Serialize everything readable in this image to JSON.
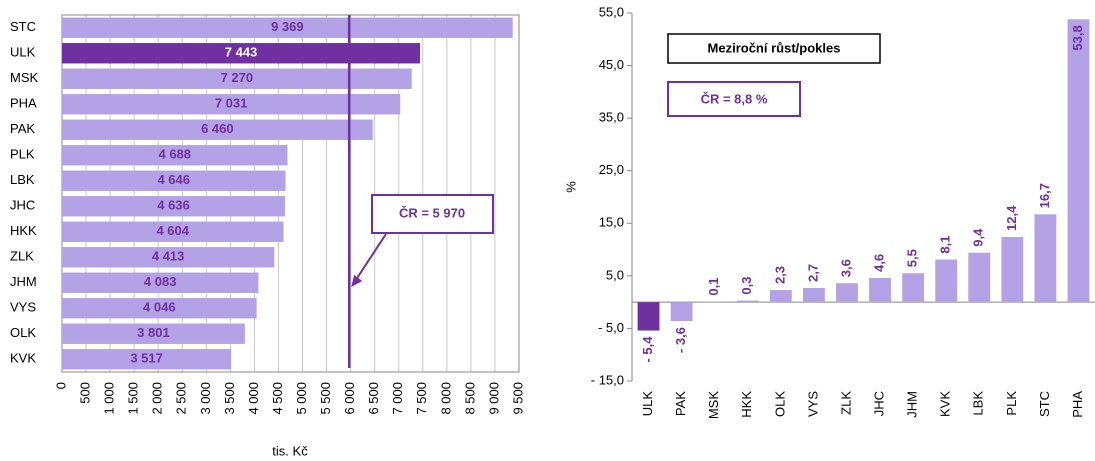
{
  "chart_data": [
    {
      "type": "hbar",
      "categories": [
        "STC",
        "ULK",
        "MSK",
        "PHA",
        "PAK",
        "PLK",
        "LBK",
        "JHC",
        "HKK",
        "ZLK",
        "JHM",
        "VYS",
        "OLK",
        "KVK"
      ],
      "values": [
        9369,
        7443,
        7270,
        7031,
        6460,
        4688,
        4646,
        4636,
        4604,
        4413,
        4083,
        4046,
        3801,
        3517
      ],
      "value_labels": [
        "9 369",
        "7 443",
        "7 270",
        "7 031",
        "6 460",
        "4 688",
        "4 646",
        "4 636",
        "4 604",
        "4 413",
        "4 083",
        "4 046",
        "3 801",
        "3 517"
      ],
      "color": "#b3a2e6",
      "highlight": {
        "category": "ULK",
        "color": "#7030a0"
      },
      "xlabel": "tis. Kč",
      "xlim": [
        0,
        9500
      ],
      "xticks": [
        0,
        500,
        {
          "value": 1000,
          "label": "1 000"
        },
        {
          "value": 1500,
          "label": "1 500"
        },
        {
          "value": 2000,
          "label": "2 000"
        },
        {
          "value": 2500,
          "label": "2 500"
        },
        {
          "value": 3000,
          "label": "3 000"
        },
        {
          "value": 3500,
          "label": "3 500"
        },
        {
          "value": 4000,
          "label": "4 000"
        },
        {
          "value": 4500,
          "label": "4 500"
        },
        {
          "value": 5000,
          "label": "5 000"
        },
        {
          "value": 5500,
          "label": "5 500"
        },
        {
          "value": 6000,
          "label": "6 000"
        },
        {
          "value": 6500,
          "label": "6 500"
        },
        {
          "value": 7000,
          "label": "7 000"
        },
        {
          "value": 7500,
          "label": "7 500"
        },
        {
          "value": 8000,
          "label": "8 000"
        },
        {
          "value": 8500,
          "label": "8 500"
        },
        {
          "value": 9000,
          "label": "9 000"
        },
        {
          "value": 9500,
          "label": "9 500"
        }
      ],
      "grid": true,
      "reference": {
        "value": 5970,
        "label": "ČR = 5 970",
        "color": "#7030a0"
      }
    },
    {
      "type": "bar",
      "title": "Meziroční růst/pokles",
      "annotation": "ČR = 8,8 %",
      "ylabel": "%",
      "categories": [
        "ULK",
        "PAK",
        "MSK",
        "HKK",
        "OLK",
        "VYS",
        "ZLK",
        "JHC",
        "JHM",
        "KVK",
        "LBK",
        "PLK",
        "STC",
        "PHA"
      ],
      "values": [
        -5.4,
        -3.6,
        0.1,
        0.3,
        2.3,
        2.7,
        3.6,
        4.6,
        5.5,
        8.1,
        9.4,
        12.4,
        16.7,
        53.8
      ],
      "value_labels": [
        "- 5,4",
        "- 3,6",
        "0,1",
        "0,3",
        "2,3",
        "2,7",
        "3,6",
        "4,6",
        "5,5",
        "8,1",
        "9,4",
        "12,4",
        "16,7",
        "53,8"
      ],
      "color": "#b3a2e6",
      "highlight": {
        "category": "ULK",
        "color": "#7030a0"
      },
      "ylim": [
        -15,
        55
      ],
      "yticks": [
        {
          "value": -15,
          "label": "- 15,0"
        },
        {
          "value": -5,
          "label": "- 5,0"
        },
        {
          "value": 5,
          "label": "5,0"
        },
        {
          "value": 15,
          "label": "15,0"
        },
        {
          "value": 25,
          "label": "25,0"
        },
        {
          "value": 35,
          "label": "35,0"
        },
        {
          "value": 45,
          "label": "45,0"
        },
        {
          "value": 55,
          "label": "55,0"
        }
      ],
      "grid": false
    }
  ]
}
